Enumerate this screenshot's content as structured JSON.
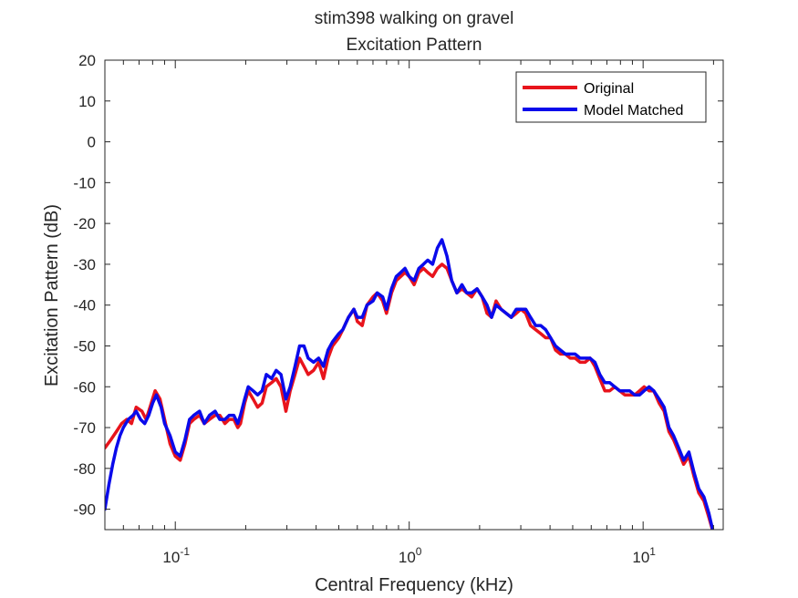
{
  "chart_data": {
    "type": "line",
    "title": [
      "stim398 walking on gravel",
      "Excitation Pattern"
    ],
    "xlabel": "Central Frequency (kHz)",
    "ylabel": "Excitation Pattern (dB)",
    "xscale": "log",
    "xlim": [
      0.05,
      22
    ],
    "ylim": [
      -95,
      20
    ],
    "xticks": [
      {
        "value": 0.1,
        "base": "10",
        "exp": "-1"
      },
      {
        "value": 1,
        "base": "10",
        "exp": "0"
      },
      {
        "value": 10,
        "base": "10",
        "exp": "1"
      }
    ],
    "yticks": [
      20,
      10,
      0,
      -10,
      -20,
      -30,
      -40,
      -50,
      -60,
      -70,
      -80,
      -90
    ],
    "grid": false,
    "legend": "top-right",
    "series": [
      {
        "name": "Original",
        "color": "#e8141c",
        "points": [
          [
            0.05,
            -75
          ],
          [
            0.053,
            -73
          ],
          [
            0.056,
            -71
          ],
          [
            0.059,
            -69
          ],
          [
            0.062,
            -68
          ],
          [
            0.065,
            -69
          ],
          [
            0.068,
            -65
          ],
          [
            0.072,
            -66
          ],
          [
            0.075,
            -68
          ],
          [
            0.078,
            -65
          ],
          [
            0.082,
            -61
          ],
          [
            0.086,
            -63
          ],
          [
            0.09,
            -68
          ],
          [
            0.095,
            -74
          ],
          [
            0.1,
            -77
          ],
          [
            0.105,
            -78
          ],
          [
            0.11,
            -74
          ],
          [
            0.115,
            -69
          ],
          [
            0.12,
            -68
          ],
          [
            0.127,
            -67
          ],
          [
            0.133,
            -69
          ],
          [
            0.14,
            -68
          ],
          [
            0.148,
            -67
          ],
          [
            0.155,
            -67
          ],
          [
            0.163,
            -69
          ],
          [
            0.17,
            -68
          ],
          [
            0.178,
            -68
          ],
          [
            0.185,
            -70
          ],
          [
            0.19,
            -69
          ],
          [
            0.198,
            -64
          ],
          [
            0.205,
            -61
          ],
          [
            0.215,
            -63
          ],
          [
            0.225,
            -65
          ],
          [
            0.235,
            -64
          ],
          [
            0.245,
            -60
          ],
          [
            0.258,
            -59
          ],
          [
            0.27,
            -58
          ],
          [
            0.283,
            -60
          ],
          [
            0.297,
            -66
          ],
          [
            0.31,
            -61
          ],
          [
            0.325,
            -57
          ],
          [
            0.34,
            -53
          ],
          [
            0.355,
            -55
          ],
          [
            0.37,
            -57
          ],
          [
            0.39,
            -56
          ],
          [
            0.41,
            -54
          ],
          [
            0.43,
            -58
          ],
          [
            0.45,
            -53
          ],
          [
            0.47,
            -50
          ],
          [
            0.5,
            -48
          ],
          [
            0.52,
            -46
          ],
          [
            0.55,
            -43
          ],
          [
            0.58,
            -41
          ],
          [
            0.6,
            -44
          ],
          [
            0.63,
            -45
          ],
          [
            0.66,
            -40
          ],
          [
            0.7,
            -38
          ],
          [
            0.73,
            -37
          ],
          [
            0.77,
            -39
          ],
          [
            0.8,
            -42
          ],
          [
            0.84,
            -37
          ],
          [
            0.88,
            -34
          ],
          [
            0.92,
            -33
          ],
          [
            0.96,
            -32
          ],
          [
            1.0,
            -33
          ],
          [
            1.05,
            -35
          ],
          [
            1.1,
            -32
          ],
          [
            1.15,
            -31
          ],
          [
            1.2,
            -32
          ],
          [
            1.26,
            -33
          ],
          [
            1.32,
            -31
          ],
          [
            1.38,
            -30
          ],
          [
            1.45,
            -31
          ],
          [
            1.52,
            -34
          ],
          [
            1.6,
            -37
          ],
          [
            1.68,
            -36
          ],
          [
            1.76,
            -37
          ],
          [
            1.85,
            -38
          ],
          [
            1.95,
            -36
          ],
          [
            2.05,
            -38
          ],
          [
            2.15,
            -42
          ],
          [
            2.25,
            -43
          ],
          [
            2.35,
            -39
          ],
          [
            2.47,
            -41
          ],
          [
            2.6,
            -42
          ],
          [
            2.73,
            -43
          ],
          [
            2.87,
            -42
          ],
          [
            3.0,
            -41
          ],
          [
            3.15,
            -42
          ],
          [
            3.3,
            -45
          ],
          [
            3.47,
            -46
          ],
          [
            3.65,
            -47
          ],
          [
            3.83,
            -48
          ],
          [
            4.02,
            -48
          ],
          [
            4.22,
            -51
          ],
          [
            4.43,
            -52
          ],
          [
            4.65,
            -52
          ],
          [
            4.88,
            -53
          ],
          [
            5.12,
            -53
          ],
          [
            5.38,
            -54
          ],
          [
            5.65,
            -54
          ],
          [
            5.93,
            -53
          ],
          [
            6.22,
            -55
          ],
          [
            6.53,
            -58
          ],
          [
            6.86,
            -61
          ],
          [
            7.2,
            -61
          ],
          [
            7.56,
            -60
          ],
          [
            7.94,
            -61
          ],
          [
            8.34,
            -62
          ],
          [
            8.76,
            -62
          ],
          [
            9.2,
            -62
          ],
          [
            9.66,
            -61
          ],
          [
            10.1,
            -60
          ],
          [
            10.6,
            -61
          ],
          [
            11.1,
            -61
          ],
          [
            11.7,
            -64
          ],
          [
            12.3,
            -66
          ],
          [
            12.9,
            -71
          ],
          [
            13.5,
            -73
          ],
          [
            14.2,
            -76
          ],
          [
            14.9,
            -79
          ],
          [
            15.7,
            -77
          ],
          [
            16.5,
            -82
          ],
          [
            17.3,
            -86
          ],
          [
            18.2,
            -88
          ],
          [
            19.1,
            -92
          ],
          [
            20.0,
            -96
          ]
        ]
      },
      {
        "name": "Model Matched",
        "color": "#0a0aeb",
        "points": [
          [
            0.05,
            -90
          ],
          [
            0.052,
            -84
          ],
          [
            0.054,
            -79
          ],
          [
            0.056,
            -75
          ],
          [
            0.058,
            -72
          ],
          [
            0.06,
            -70
          ],
          [
            0.063,
            -68
          ],
          [
            0.066,
            -67
          ],
          [
            0.068,
            -66
          ],
          [
            0.071,
            -68
          ],
          [
            0.074,
            -69
          ],
          [
            0.077,
            -67
          ],
          [
            0.08,
            -64
          ],
          [
            0.083,
            -62
          ],
          [
            0.087,
            -65
          ],
          [
            0.09,
            -69
          ],
          [
            0.095,
            -72
          ],
          [
            0.1,
            -76
          ],
          [
            0.105,
            -77
          ],
          [
            0.11,
            -73
          ],
          [
            0.115,
            -68
          ],
          [
            0.12,
            -67
          ],
          [
            0.127,
            -66
          ],
          [
            0.133,
            -69
          ],
          [
            0.14,
            -67
          ],
          [
            0.148,
            -66
          ],
          [
            0.155,
            -68
          ],
          [
            0.163,
            -68
          ],
          [
            0.17,
            -67
          ],
          [
            0.178,
            -67
          ],
          [
            0.185,
            -69
          ],
          [
            0.19,
            -67
          ],
          [
            0.198,
            -63
          ],
          [
            0.205,
            -60
          ],
          [
            0.215,
            -61
          ],
          [
            0.225,
            -62
          ],
          [
            0.235,
            -61
          ],
          [
            0.245,
            -57
          ],
          [
            0.258,
            -58
          ],
          [
            0.27,
            -56
          ],
          [
            0.283,
            -57
          ],
          [
            0.297,
            -63
          ],
          [
            0.31,
            -60
          ],
          [
            0.325,
            -55
          ],
          [
            0.34,
            -50
          ],
          [
            0.355,
            -50
          ],
          [
            0.37,
            -53
          ],
          [
            0.39,
            -54
          ],
          [
            0.41,
            -53
          ],
          [
            0.43,
            -55
          ],
          [
            0.45,
            -51
          ],
          [
            0.47,
            -49
          ],
          [
            0.5,
            -47
          ],
          [
            0.52,
            -46
          ],
          [
            0.55,
            -43
          ],
          [
            0.58,
            -41
          ],
          [
            0.6,
            -43
          ],
          [
            0.63,
            -43
          ],
          [
            0.66,
            -40
          ],
          [
            0.7,
            -39
          ],
          [
            0.73,
            -37
          ],
          [
            0.77,
            -38
          ],
          [
            0.8,
            -41
          ],
          [
            0.84,
            -36
          ],
          [
            0.88,
            -33
          ],
          [
            0.92,
            -32
          ],
          [
            0.96,
            -31
          ],
          [
            1.0,
            -33
          ],
          [
            1.05,
            -34
          ],
          [
            1.1,
            -31
          ],
          [
            1.15,
            -30
          ],
          [
            1.2,
            -29
          ],
          [
            1.26,
            -30
          ],
          [
            1.32,
            -26
          ],
          [
            1.38,
            -24
          ],
          [
            1.45,
            -28
          ],
          [
            1.52,
            -34
          ],
          [
            1.6,
            -37
          ],
          [
            1.68,
            -35
          ],
          [
            1.76,
            -37
          ],
          [
            1.85,
            -37
          ],
          [
            1.95,
            -36
          ],
          [
            2.05,
            -38
          ],
          [
            2.15,
            -40
          ],
          [
            2.25,
            -43
          ],
          [
            2.35,
            -40
          ],
          [
            2.47,
            -41
          ],
          [
            2.6,
            -42
          ],
          [
            2.73,
            -43
          ],
          [
            2.87,
            -41
          ],
          [
            3.0,
            -41
          ],
          [
            3.15,
            -41
          ],
          [
            3.3,
            -43
          ],
          [
            3.47,
            -45
          ],
          [
            3.65,
            -45
          ],
          [
            3.83,
            -46
          ],
          [
            4.02,
            -48
          ],
          [
            4.22,
            -50
          ],
          [
            4.43,
            -51
          ],
          [
            4.65,
            -52
          ],
          [
            4.88,
            -52
          ],
          [
            5.12,
            -52
          ],
          [
            5.38,
            -53
          ],
          [
            5.65,
            -53
          ],
          [
            5.93,
            -53
          ],
          [
            6.22,
            -54
          ],
          [
            6.53,
            -57
          ],
          [
            6.86,
            -59
          ],
          [
            7.2,
            -59
          ],
          [
            7.56,
            -60
          ],
          [
            7.94,
            -61
          ],
          [
            8.34,
            -61
          ],
          [
            8.76,
            -61
          ],
          [
            9.2,
            -62
          ],
          [
            9.66,
            -62
          ],
          [
            10.1,
            -61
          ],
          [
            10.6,
            -60
          ],
          [
            11.1,
            -61
          ],
          [
            11.7,
            -63
          ],
          [
            12.3,
            -65
          ],
          [
            12.9,
            -70
          ],
          [
            13.5,
            -72
          ],
          [
            14.2,
            -75
          ],
          [
            14.9,
            -78
          ],
          [
            15.7,
            -76
          ],
          [
            16.5,
            -81
          ],
          [
            17.3,
            -85
          ],
          [
            18.2,
            -87
          ],
          [
            19.1,
            -91
          ],
          [
            20.0,
            -96
          ]
        ]
      }
    ]
  }
}
